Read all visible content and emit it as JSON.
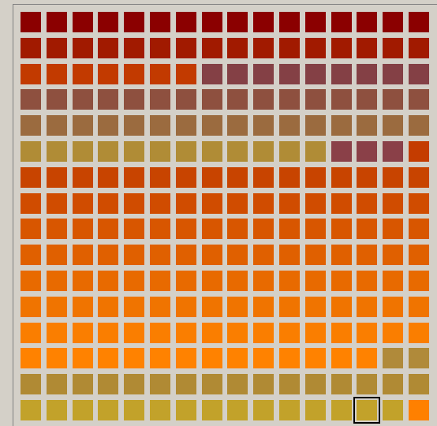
{
  "palette": {
    "columns": 16,
    "selected": {
      "row": 15,
      "col": 13
    },
    "rows": [
      [
        "#8b0000",
        "#8b0000",
        "#8b0000",
        "#8b0000",
        "#8b0000",
        "#8b0000",
        "#8b0000",
        "#8b0000",
        "#8b0000",
        "#8b0000",
        "#8b0000",
        "#8b0000",
        "#8b0000",
        "#8b0000",
        "#8b0000",
        "#8b0000"
      ],
      [
        "#a11a00",
        "#a11a00",
        "#a11a00",
        "#a11a00",
        "#a11a00",
        "#a11a00",
        "#a11a00",
        "#a11a00",
        "#a11a00",
        "#a11a00",
        "#a11a00",
        "#a11a00",
        "#a11a00",
        "#a11a00",
        "#a11a00",
        "#a11a00"
      ],
      [
        "#c23a00",
        "#c23a00",
        "#c23a00",
        "#c23a00",
        "#c23a00",
        "#c23a00",
        "#c23a00",
        "#844045",
        "#844045",
        "#844045",
        "#844045",
        "#844045",
        "#844045",
        "#844045",
        "#844045",
        "#844045"
      ],
      [
        "#8e503f",
        "#8e503f",
        "#8e503f",
        "#8e503f",
        "#8e503f",
        "#8e503f",
        "#8e503f",
        "#8e503f",
        "#8e503f",
        "#8e503f",
        "#8e503f",
        "#8e503f",
        "#8e503f",
        "#8e503f",
        "#8e503f",
        "#8e503f"
      ],
      [
        "#9b6b3f",
        "#9b6b3f",
        "#9b6b3f",
        "#9b6b3f",
        "#9b6b3f",
        "#9b6b3f",
        "#9b6b3f",
        "#9b6b3f",
        "#9b6b3f",
        "#9b6b3f",
        "#9b6b3f",
        "#9b6b3f",
        "#9b6b3f",
        "#9b6b3f",
        "#9b6b3f",
        "#9b6b3f"
      ],
      [
        "#b08c36",
        "#b08c36",
        "#b08c36",
        "#b08c36",
        "#b08c36",
        "#b08c36",
        "#b08c36",
        "#b08c36",
        "#b08c36",
        "#b08c36",
        "#b08c36",
        "#b08c36",
        "#8a4048",
        "#8a4048",
        "#8a4048",
        "#c43c00"
      ],
      [
        "#c84400",
        "#c84400",
        "#c84400",
        "#c84400",
        "#c84400",
        "#c84400",
        "#c84400",
        "#c84400",
        "#c84400",
        "#c84400",
        "#c84400",
        "#c84400",
        "#c84400",
        "#c84400",
        "#c84400",
        "#c84400"
      ],
      [
        "#d04c00",
        "#d04c00",
        "#d04c00",
        "#d04c00",
        "#d04c00",
        "#d04c00",
        "#d04c00",
        "#d04c00",
        "#d04c00",
        "#d04c00",
        "#d04c00",
        "#d04c00",
        "#d04c00",
        "#d04c00",
        "#d04c00",
        "#d04c00"
      ],
      [
        "#d85600",
        "#d85600",
        "#d85600",
        "#d85600",
        "#d85600",
        "#d85600",
        "#d85600",
        "#d85600",
        "#d85600",
        "#d85600",
        "#d85600",
        "#d85600",
        "#d85600",
        "#d85600",
        "#d85600",
        "#d85600"
      ],
      [
        "#e06000",
        "#e06000",
        "#e06000",
        "#e06000",
        "#e06000",
        "#e06000",
        "#e06000",
        "#e06000",
        "#e06000",
        "#e06000",
        "#e06000",
        "#e06000",
        "#e06000",
        "#e06000",
        "#e06000",
        "#e06000"
      ],
      [
        "#e86a00",
        "#e86a00",
        "#e86a00",
        "#e86a00",
        "#e86a00",
        "#e86a00",
        "#e86a00",
        "#e86a00",
        "#e86a00",
        "#e86a00",
        "#e86a00",
        "#e86a00",
        "#e86a00",
        "#e86a00",
        "#e86a00",
        "#e86a00"
      ],
      [
        "#f07400",
        "#f07400",
        "#f07400",
        "#f07400",
        "#f07400",
        "#f07400",
        "#f07400",
        "#f07400",
        "#f07400",
        "#f07400",
        "#f07400",
        "#f07400",
        "#f07400",
        "#f07400",
        "#f07400",
        "#f07400"
      ],
      [
        "#fa7e00",
        "#fa7e00",
        "#fa7e00",
        "#fa7e00",
        "#fa7e00",
        "#fa7e00",
        "#fa7e00",
        "#fa7e00",
        "#fa7e00",
        "#fa7e00",
        "#fa7e00",
        "#fa7e00",
        "#fa7e00",
        "#fa7e00",
        "#fa7e00",
        "#fa7e00"
      ],
      [
        "#ff8200",
        "#ff8200",
        "#ff8200",
        "#ff8200",
        "#ff8200",
        "#ff8200",
        "#ff8200",
        "#ff8200",
        "#ff8200",
        "#ff8200",
        "#ff8200",
        "#ff8200",
        "#ff8200",
        "#ff8200",
        "#b08a3a",
        "#b08a3a"
      ],
      [
        "#b08a34",
        "#b08a34",
        "#b08a34",
        "#b08a34",
        "#b08a34",
        "#b08a34",
        "#b08a34",
        "#b08a34",
        "#b08a34",
        "#b08a34",
        "#b08a34",
        "#b08a34",
        "#b08a34",
        "#b08a34",
        "#b08a34",
        "#b08a34"
      ],
      [
        "#c2a22a",
        "#c2a22a",
        "#c2a22a",
        "#c2a22a",
        "#c2a22a",
        "#c2a22a",
        "#c2a22a",
        "#c2a22a",
        "#c2a22a",
        "#c2a22a",
        "#c2a22a",
        "#c2a22a",
        "#c2a22a",
        "#c2a22a",
        "#c2a22a",
        "#ff8000"
      ]
    ]
  }
}
